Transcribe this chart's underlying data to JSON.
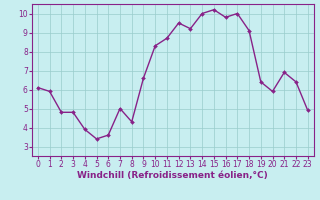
{
  "x": [
    0,
    1,
    2,
    3,
    4,
    5,
    6,
    7,
    8,
    9,
    10,
    11,
    12,
    13,
    14,
    15,
    16,
    17,
    18,
    19,
    20,
    21,
    22,
    23
  ],
  "y": [
    6.1,
    5.9,
    4.8,
    4.8,
    3.9,
    3.4,
    3.6,
    5.0,
    4.3,
    6.6,
    8.3,
    8.7,
    9.5,
    9.2,
    10.0,
    10.2,
    9.8,
    10.0,
    9.1,
    6.4,
    5.9,
    6.9,
    6.4,
    4.9
  ],
  "line_color": "#882288",
  "marker": "D",
  "marker_size": 2.0,
  "bg_color": "#c8eef0",
  "grid_color": "#99cccc",
  "xlabel": "Windchill (Refroidissement éolien,°C)",
  "xlim": [
    -0.5,
    23.5
  ],
  "ylim": [
    2.5,
    10.5
  ],
  "yticks": [
    3,
    4,
    5,
    6,
    7,
    8,
    9,
    10
  ],
  "xticks": [
    0,
    1,
    2,
    3,
    4,
    5,
    6,
    7,
    8,
    9,
    10,
    11,
    12,
    13,
    14,
    15,
    16,
    17,
    18,
    19,
    20,
    21,
    22,
    23
  ],
  "tick_fontsize": 5.5,
  "xlabel_fontsize": 6.5,
  "line_width": 1.0
}
